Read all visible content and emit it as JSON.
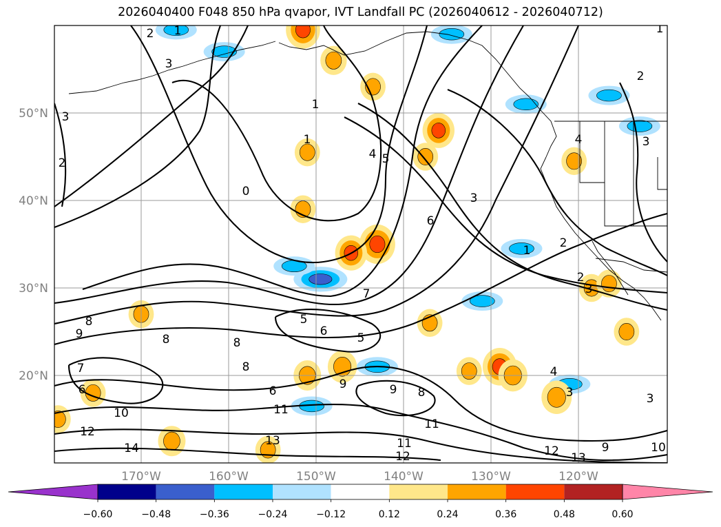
{
  "title": "2026040400 F048 850 hPa qvapor, IVT Landfall PC (2026040612 - 2026040712)",
  "map": {
    "lat_labels": [
      "50°N",
      "40°N",
      "30°N",
      "20°N"
    ],
    "lon_labels": [
      "170°W",
      "160°W",
      "150°W",
      "140°W",
      "130°W",
      "120°W"
    ],
    "gridlines": true,
    "extent": {
      "lon": [
        -180,
        -110
      ],
      "lat": [
        10,
        60
      ]
    }
  },
  "contour_labels": [
    "2",
    "1",
    "3",
    "3",
    "2",
    "1",
    "1",
    "4",
    "5",
    "0",
    "6",
    "3",
    "1",
    "2",
    "2",
    "3",
    "4",
    "8",
    "9",
    "7",
    "6",
    "5",
    "6",
    "5",
    "8",
    "8",
    "8",
    "7",
    "6",
    "10",
    "12",
    "14",
    "11",
    "13",
    "9",
    "9",
    "8",
    "11",
    "11",
    "12",
    "4",
    "3",
    "3",
    "12",
    "13",
    "9",
    "10",
    "3",
    "2",
    "1"
  ],
  "colorbar": {
    "ticks": [
      "−0.60",
      "−0.48",
      "−0.36",
      "−0.24",
      "−0.12",
      "0.12",
      "0.24",
      "0.36",
      "0.48",
      "0.60"
    ],
    "colors": [
      "#9932cc",
      "#00008b",
      "#3a5fcd",
      "#00bfff",
      "#b0e2ff",
      "#ffffff",
      "#ffe78a",
      "#ffa500",
      "#ff4500",
      "#b22222",
      "#ff85a8"
    ],
    "extend": "both"
  },
  "fills": [
    {
      "lon": -160.5,
      "lat": 57.0,
      "v": -0.3
    },
    {
      "lon": -166.0,
      "lat": 59.5,
      "v": -0.3
    },
    {
      "lon": -149.5,
      "lat": 31.0,
      "v": -0.45
    },
    {
      "lon": -152.5,
      "lat": 32.5,
      "v": -0.3
    },
    {
      "lon": -150.5,
      "lat": 16.5,
      "v": -0.3
    },
    {
      "lon": -126.5,
      "lat": 34.5,
      "v": -0.3
    },
    {
      "lon": -121.0,
      "lat": 19.0,
      "v": -0.3
    },
    {
      "lon": -126.0,
      "lat": 51.0,
      "v": -0.3
    },
    {
      "lon": -116.5,
      "lat": 52.0,
      "v": -0.3
    },
    {
      "lon": -113.0,
      "lat": 48.5,
      "v": -0.3
    },
    {
      "lon": -143.0,
      "lat": 21.0,
      "v": -0.3
    },
    {
      "lon": -131.0,
      "lat": 28.5,
      "v": -0.3
    },
    {
      "lon": -134.5,
      "lat": 59.0,
      "v": -0.3
    },
    {
      "lon": -151.5,
      "lat": 59.5,
      "v": 0.42
    },
    {
      "lon": -143.0,
      "lat": 35.0,
      "v": 0.45
    },
    {
      "lon": -146.0,
      "lat": 34.0,
      "v": 0.38
    },
    {
      "lon": -136.0,
      "lat": 48.0,
      "v": 0.38
    },
    {
      "lon": -129.0,
      "lat": 21.0,
      "v": 0.42
    },
    {
      "lon": -127.5,
      "lat": 20.0,
      "v": 0.33
    },
    {
      "lon": -122.5,
      "lat": 17.5,
      "v": 0.35
    },
    {
      "lon": -147.0,
      "lat": 21.0,
      "v": 0.33
    },
    {
      "lon": -151.0,
      "lat": 20.0,
      "v": 0.3
    },
    {
      "lon": -166.5,
      "lat": 12.5,
      "v": 0.3
    },
    {
      "lon": -148.0,
      "lat": 56.0,
      "v": 0.28
    },
    {
      "lon": -151.0,
      "lat": 45.5,
      "v": 0.26
    },
    {
      "lon": -151.5,
      "lat": 39.0,
      "v": 0.26
    },
    {
      "lon": -137.5,
      "lat": 45.0,
      "v": 0.26
    },
    {
      "lon": -143.5,
      "lat": 53.0,
      "v": 0.26
    },
    {
      "lon": -132.5,
      "lat": 20.5,
      "v": 0.26
    },
    {
      "lon": -118.5,
      "lat": 30.0,
      "v": 0.26
    },
    {
      "lon": -114.5,
      "lat": 25.0,
      "v": 0.26
    },
    {
      "lon": -175.5,
      "lat": 18.0,
      "v": 0.26
    },
    {
      "lon": -170.0,
      "lat": 27.0,
      "v": 0.26
    },
    {
      "lon": -179.5,
      "lat": 15.0,
      "v": 0.26
    },
    {
      "lon": -137.0,
      "lat": 26.0,
      "v": 0.26
    },
    {
      "lon": -120.5,
      "lat": 44.5,
      "v": 0.26
    },
    {
      "lon": -155.5,
      "lat": 11.5,
      "v": 0.26
    },
    {
      "lon": -116.5,
      "lat": 30.5,
      "v": 0.26
    }
  ]
}
